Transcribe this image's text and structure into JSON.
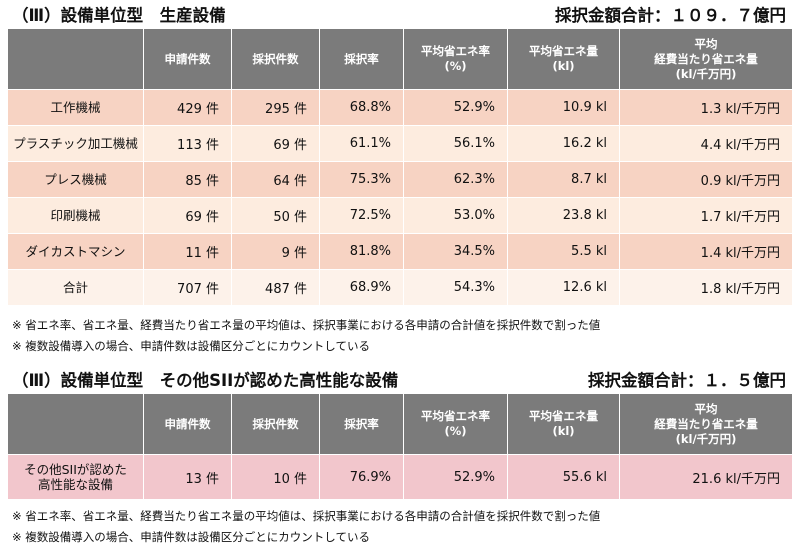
{
  "section1": {
    "title": "（Ⅲ）設備単位型　生産設備",
    "total": "採択金額合計：１０９．７億円",
    "headers": [
      "",
      "申請件数",
      "採択件数",
      "採択率",
      "平均省エネ率\n(%)",
      "平均省エネ量\n(kl)",
      "平均\n経費当たり省エネ量\n(kl/千万円)"
    ],
    "rows": [
      {
        "label": "工作機械",
        "c1": "429 件",
        "c2": "295 件",
        "c3": "68.8%",
        "c4": "52.9%",
        "c5": "10.9 kl",
        "c6": "1.3 kl/千万円"
      },
      {
        "label": "プラスチック加工機械",
        "c1": "113 件",
        "c2": "69 件",
        "c3": "61.1%",
        "c4": "56.1%",
        "c5": "16.2 kl",
        "c6": "4.4 kl/千万円"
      },
      {
        "label": "プレス機械",
        "c1": "85 件",
        "c2": "64 件",
        "c3": "75.3%",
        "c4": "62.3%",
        "c5": "8.7 kl",
        "c6": "0.9 kl/千万円"
      },
      {
        "label": "印刷機械",
        "c1": "69 件",
        "c2": "50 件",
        "c3": "72.5%",
        "c4": "53.0%",
        "c5": "23.8 kl",
        "c6": "1.7 kl/千万円"
      },
      {
        "label": "ダイカストマシン",
        "c1": "11 件",
        "c2": "9 件",
        "c3": "81.8%",
        "c4": "34.5%",
        "c5": "5.5 kl",
        "c6": "1.4 kl/千万円"
      },
      {
        "label": "合計",
        "c1": "707 件",
        "c2": "487 件",
        "c3": "68.9%",
        "c4": "54.3%",
        "c5": "12.6 kl",
        "c6": "1.8 kl/千万円"
      }
    ],
    "notes": [
      "※ 省エネ率、省エネ量、経費当たり省エネ量の平均値は、採択事業における各申請の合計値を採択件数で割った値",
      "※ 複数設備導入の場合、申請件数は設備区分ごとにカウントしている"
    ]
  },
  "section2": {
    "title": "（Ⅲ）設備単位型　その他SIIが認めた高性能な設備",
    "total": "採択金額合計：１．５億円",
    "headers": [
      "",
      "申請件数",
      "採択件数",
      "採択率",
      "平均省エネ率\n(%)",
      "平均省エネ量\n(kl)",
      "平均\n経費当たり省エネ量\n(kl/千万円)"
    ],
    "rows": [
      {
        "label": "その他SIIが認めた\n高性能な設備",
        "c1": "13 件",
        "c2": "10 件",
        "c3": "76.9%",
        "c4": "52.9%",
        "c5": "55.6 kl",
        "c6": "21.6 kl/千万円"
      }
    ],
    "notes": [
      "※ 省エネ率、省エネ量、経費当たり省エネ量の平均値は、採択事業における各申請の合計値を採択件数で割った値",
      "※ 複数設備導入の場合、申請件数は設備区分ごとにカウントしている"
    ]
  },
  "colors": {
    "header_bg": "#7b7b7b",
    "row_pink": "#f7d3c3",
    "row_light": "#fdecdf",
    "row_total": "#fdf2ea",
    "row_pink2": "#f2c6cc"
  }
}
